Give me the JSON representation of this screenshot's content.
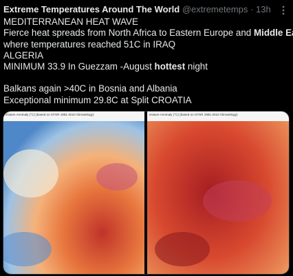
{
  "post": {
    "author": "Extreme Temperatures Around The World",
    "handle": "@extremetemps",
    "separator": "·",
    "time": "13h",
    "paragraphs": [
      [
        [
          {
            "text": "MEDITERRANEAN HEAT WAVE"
          }
        ],
        [
          {
            "text": "Fierce heat spreads from North Africa to Eastern Europe and "
          },
          {
            "text": "Middle East",
            "bold": true
          }
        ],
        [
          {
            "text": "where temperatures reached 51C in IRAQ"
          }
        ],
        [
          {
            "text": "ALGERIA"
          }
        ],
        [
          {
            "text": "MINIMUM 33.9 In Guezzam -August "
          },
          {
            "text": "hottest",
            "bold": true
          },
          {
            "text": " night"
          }
        ]
      ],
      [
        [
          {
            "text": "Balkans again >40C in Bosnia and Albania"
          }
        ],
        [
          {
            "text": "Exceptional minimum 29.8C at Split CROATIA"
          }
        ]
      ]
    ],
    "images": [
      {
        "caption": "erature Anomaly (°C) (based on CFSR 1981-2010 Climatology)"
      },
      {
        "caption": "erature Anomaly (°C) (based on CFSR 1981-2010 Climatology)"
      }
    ]
  }
}
